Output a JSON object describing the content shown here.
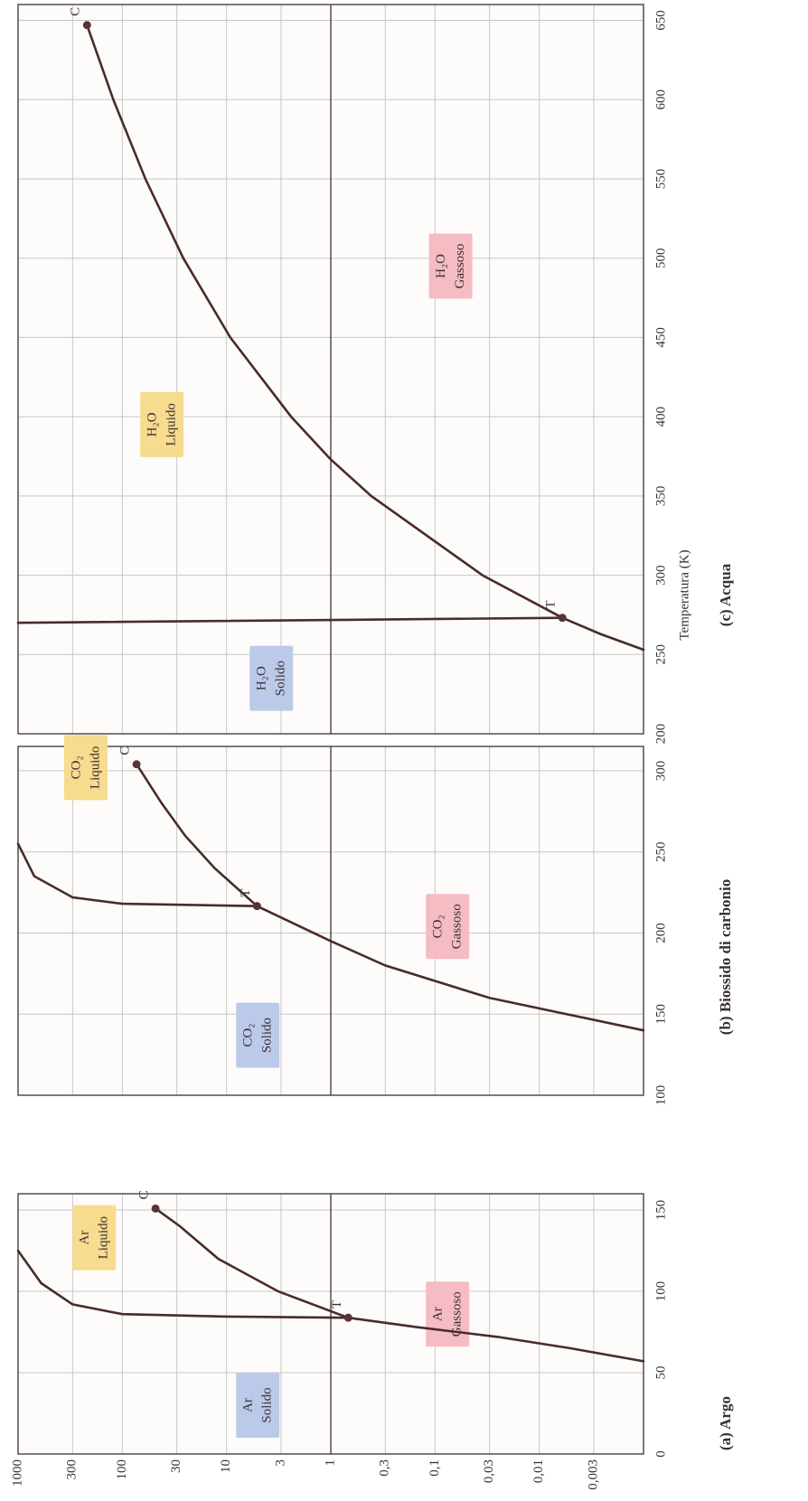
{
  "chart_data": [
    {
      "type": "line",
      "title": "(a) Argo",
      "log_y": true,
      "grid": true,
      "hline": 1,
      "xlim": [
        0,
        160
      ],
      "xticks": [
        0,
        50,
        100,
        150
      ],
      "ylim": [
        0.001,
        1000
      ],
      "yticks": [
        1000,
        300,
        100,
        30,
        10,
        3,
        1,
        {
          "value": 0.3,
          "label": "0,3"
        },
        {
          "value": 0.1,
          "label": "0,1"
        },
        {
          "value": 0.03,
          "label": "0,03"
        },
        {
          "value": 0.01,
          "label": "0,01"
        },
        {
          "value": 0.003,
          "label": "0,003"
        }
      ],
      "series": [
        {
          "color": "#4a2b2b",
          "x": [
            57,
            65,
            72,
            78,
            83.8
          ],
          "values": [
            0.001,
            0.005,
            0.025,
            0.15,
            0.68
          ]
        },
        {
          "color": "#4a2b2b",
          "x": [
            83.8,
            100,
            120,
            140,
            150.9
          ],
          "values": [
            0.68,
            3.2,
            12,
            28,
            48
          ]
        },
        {
          "color": "#4a2b2b",
          "x": [
            83.8,
            84.5,
            86,
            92,
            105,
            125
          ],
          "values": [
            0.68,
            10,
            100,
            300,
            600,
            1000
          ]
        }
      ],
      "points": [
        {
          "label": "T",
          "x": 83.8,
          "y": 0.68
        },
        {
          "label": "C",
          "x": 150.9,
          "y": 48
        }
      ],
      "regions": [
        {
          "formula": "Ar",
          "phase": "Solido",
          "color": "#bccaea"
        },
        {
          "formula": "Ar",
          "phase": "Liquido",
          "color": "#f7db8e"
        },
        {
          "formula": "Ar",
          "phase": "Gassoso",
          "color": "#f5bcc4"
        }
      ]
    },
    {
      "type": "line",
      "title": "(b) Biossido di carbonio",
      "log_y": true,
      "grid": true,
      "hline": 1,
      "xlim": [
        100,
        315
      ],
      "xticks": [
        100,
        150,
        200,
        250,
        300
      ],
      "ylim": [
        0.001,
        1000
      ],
      "yticks": [
        1000,
        300,
        100,
        30,
        10,
        3,
        1,
        0.3,
        0.1,
        0.03,
        0.01,
        0.003
      ],
      "series": [
        {
          "color": "#4a2b2b",
          "x": [
            140,
            160,
            180,
            195,
            216.6
          ],
          "values": [
            0.001,
            0.03,
            0.3,
            1,
            5.1
          ]
        },
        {
          "color": "#4a2b2b",
          "x": [
            216.6,
            240,
            260,
            280,
            304
          ],
          "values": [
            5.1,
            13,
            25,
            42,
            73
          ]
        },
        {
          "color": "#4a2b2b",
          "x": [
            216.6,
            218,
            222,
            235,
            255
          ],
          "values": [
            5.1,
            100,
            300,
            700,
            1000
          ]
        }
      ],
      "points": [
        {
          "label": "T",
          "x": 216.6,
          "y": 5.1
        },
        {
          "label": "C",
          "x": 304,
          "y": 73
        }
      ],
      "regions": [
        {
          "formula": "CO₂",
          "phase": "Solido",
          "color": "#bccaea"
        },
        {
          "formula": "CO₂",
          "phase": "Liquido",
          "color": "#f7db8e"
        },
        {
          "formula": "CO₂",
          "phase": "Gassoso",
          "color": "#f5bcc4"
        }
      ]
    },
    {
      "type": "line",
      "title": "(c) Acqua",
      "xlabel": "Temperatura (K)",
      "log_y": true,
      "grid": true,
      "hline": 1,
      "xlim": [
        200,
        660
      ],
      "xticks": [
        200,
        250,
        300,
        350,
        400,
        450,
        500,
        550,
        600,
        650
      ],
      "ylim": [
        0.001,
        1000
      ],
      "yticks": [
        1000,
        300,
        100,
        30,
        10,
        3,
        1,
        0.3,
        0.1,
        0.03,
        0.01,
        0.003
      ],
      "series": [
        {
          "color": "#4a2b2b",
          "x": [
            253,
            263,
            273.16
          ],
          "values": [
            0.001,
            0.0026,
            0.006
          ]
        },
        {
          "color": "#4a2b2b",
          "x": [
            273.16,
            300,
            350,
            373,
            400,
            450,
            500,
            550,
            600,
            647
          ],
          "values": [
            0.006,
            0.035,
            0.41,
            1,
            2.4,
            9.2,
            26,
            60,
            122,
            218
          ]
        },
        {
          "color": "#4a2b2b",
          "x": [
            273.16,
            270
          ],
          "values": [
            0.006,
            1000
          ]
        }
      ],
      "points": [
        {
          "label": "T",
          "x": 273.16,
          "y": 0.006
        },
        {
          "label": "C",
          "x": 647,
          "y": 218
        }
      ],
      "regions": [
        {
          "formula": "H₂O",
          "phase": "Solido",
          "color": "#bccaea"
        },
        {
          "formula": "H₂O",
          "phase": "Liquido",
          "color": "#f7db8e"
        },
        {
          "formula": "H₂O",
          "phase": "Gassoso",
          "color": "#f5bcc4"
        }
      ]
    }
  ]
}
